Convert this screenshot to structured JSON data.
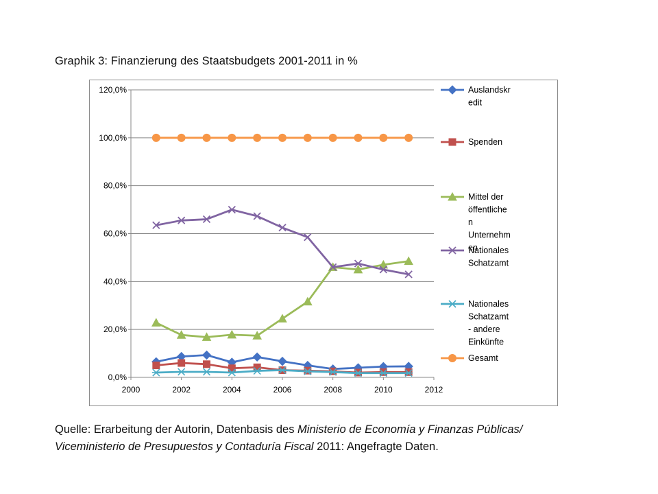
{
  "caption": "Graphik 3: Finanzierung des Staatsbudgets 2001-2011 in %",
  "source": {
    "prefix": "Quelle: Erarbeitung der Autorin, Datenbasis des ",
    "ministry_italic": "Ministerio de Economía y Finanzas Públicas/",
    "vice_italic": "Viceministerio de Presupuestos y Contaduría Fiscal",
    "suffix": " 2011: Angefragte Daten."
  },
  "chart_data": {
    "type": "line",
    "title": "",
    "xlabel": "",
    "ylabel": "",
    "xlim": [
      2000,
      2012
    ],
    "ylim": [
      0,
      120
    ],
    "x_ticks": [
      "2000",
      "2002",
      "2004",
      "2006",
      "2008",
      "2010",
      "2012"
    ],
    "y_ticks": [
      "0,0%",
      "20,0%",
      "40,0%",
      "60,0%",
      "80,0%",
      "100,0%",
      "120,0%"
    ],
    "grid": "horizontal",
    "legend_position": "right",
    "x": [
      2001,
      2002,
      2003,
      2004,
      2005,
      2006,
      2007,
      2008,
      2009,
      2010,
      2011
    ],
    "series": [
      {
        "name": "Auslandskredit",
        "legend_lines": [
          "Auslandskr",
          "edit"
        ],
        "color": "#4472C4",
        "marker": "diamond",
        "values": [
          6.5,
          8.7,
          9.3,
          6.3,
          8.5,
          6.7,
          5.0,
          3.5,
          4.0,
          4.5,
          4.6
        ]
      },
      {
        "name": "Spenden",
        "legend_lines": [
          "Spenden"
        ],
        "color": "#C0504D",
        "marker": "square",
        "values": [
          5.0,
          6.0,
          5.5,
          3.8,
          4.2,
          3.0,
          2.8,
          2.5,
          2.0,
          2.2,
          2.2
        ]
      },
      {
        "name": "Mittel der öffentlichen Unternehmen",
        "legend_lines": [
          "Mittel der",
          "öffentliche",
          "n",
          "Unternehm",
          "en"
        ],
        "color": "#9BBB59",
        "marker": "triangle",
        "values": [
          22.8,
          17.7,
          16.8,
          17.8,
          17.4,
          24.5,
          31.6,
          46.0,
          45.0,
          47.0,
          48.5
        ]
      },
      {
        "name": "Nationales Schatzamt",
        "legend_lines": [
          "Nationales",
          "Schatzamt"
        ],
        "color": "#8064A2",
        "marker": "x",
        "values": [
          63.5,
          65.5,
          66.0,
          70.0,
          67.3,
          62.5,
          58.5,
          46.0,
          47.5,
          45.0,
          43.0
        ]
      },
      {
        "name": "Nationales Schatzamt - andere Einkünfte",
        "legend_lines": [
          "Nationales",
          "Schatzamt",
          "- andere",
          "Einkünfte"
        ],
        "color": "#4BACC6",
        "marker": "star",
        "values": [
          2.0,
          2.3,
          2.3,
          2.0,
          2.7,
          3.0,
          2.5,
          2.2,
          1.8,
          1.8,
          1.8
        ]
      },
      {
        "name": "Gesamt",
        "legend_lines": [
          "Gesamt"
        ],
        "color": "#F79646",
        "marker": "circle",
        "values": [
          100,
          100,
          100,
          100,
          100,
          100,
          100,
          100,
          100,
          100,
          100
        ]
      }
    ]
  }
}
